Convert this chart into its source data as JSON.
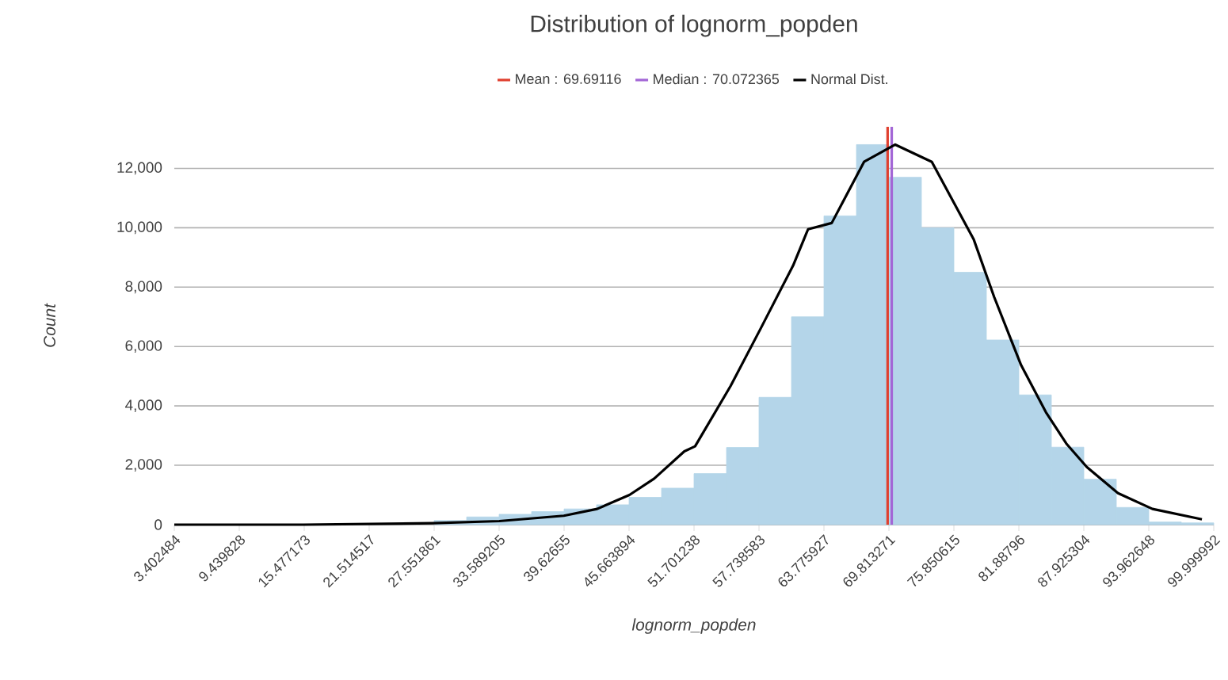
{
  "chart_data": {
    "type": "histogram",
    "title": "Distribution of lognorm_popden",
    "xlabel": "lognorm_popden",
    "ylabel": "Count",
    "bins": [
      3.402484,
      6.421156,
      9.439828,
      12.4585,
      15.477173,
      18.495845,
      21.514517,
      24.533189,
      27.551861,
      30.570533,
      33.589205,
      36.607877,
      39.62655,
      42.645222,
      45.663894,
      48.682566,
      51.701238,
      54.71991,
      57.738583,
      60.757255,
      63.775927,
      66.794599,
      69.813271,
      72.831943,
      75.850615,
      78.869287,
      81.88796,
      84.906632,
      87.925304,
      90.943976,
      93.962648,
      96.98132,
      99.999992
    ],
    "values": [
      0,
      0,
      0,
      0,
      null,
      null,
      null,
      null,
      140,
      260,
      350,
      440,
      530,
      670,
      920,
      1230,
      1720,
      2600,
      4290,
      7000,
      10400,
      12800,
      11700,
      10000,
      8500,
      6220,
      4370,
      2610,
      1530,
      580,
      90,
      60
    ],
    "color": "#b4d5e9",
    "series": [
      {
        "type": "line",
        "name": "Normal Dist.",
        "color": "#000000",
        "x": [
          3.402484,
          15.4,
          27.4,
          33.6,
          39.6,
          42.7,
          45.7,
          48.0,
          50.8,
          51.8,
          55.1,
          57.9,
          60.9,
          62.3,
          64.5,
          67.5,
          70.4,
          73.8,
          77.7,
          79.6,
          82.1,
          84.4,
          86.3,
          88.2,
          91.1,
          94.3,
          98.9
        ],
        "values": [
          0,
          0,
          50,
          120,
          300,
          530,
          1000,
          1550,
          2470,
          2640,
          4670,
          6610,
          8720,
          9950,
          10160,
          12220,
          12800,
          12220,
          9600,
          7660,
          5370,
          3790,
          2730,
          1940,
          1060,
          530,
          180
        ]
      }
    ],
    "ref_lines": [
      {
        "axis": "x",
        "value": 69.69116,
        "label": "Mean : 69.69116",
        "color": "#e0402f"
      },
      {
        "axis": "x",
        "value": 70.072365,
        "label": "Median : 70.072365",
        "color": "#a366d6"
      }
    ],
    "xlim": [
      3.402484,
      99.999992
    ],
    "xticks": [
      3.402484,
      9.439828,
      15.477173,
      21.514517,
      27.551861,
      33.589205,
      39.62655,
      45.663894,
      51.701238,
      57.738583,
      63.775927,
      69.813271,
      75.850615,
      81.88796,
      87.925304,
      93.962648,
      99.999992
    ],
    "ylim": [
      0,
      13400
    ],
    "yticks": [
      0,
      {
        "value": 2000,
        "label": "2,000"
      },
      {
        "value": 4000,
        "label": "4,000"
      },
      {
        "value": 6000,
        "label": "6,000"
      },
      {
        "value": 8000,
        "label": "8,000"
      },
      {
        "value": 10000,
        "label": "10,000"
      },
      {
        "value": 12000,
        "label": "12,000"
      }
    ],
    "grid": "y",
    "legend": "top"
  }
}
